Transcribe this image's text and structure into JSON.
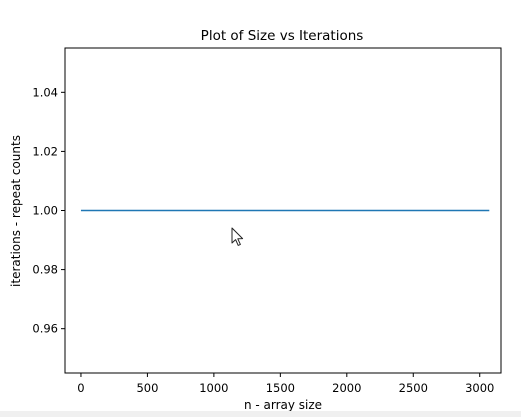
{
  "chart_data": {
    "type": "line",
    "title": "Plot of Size vs Iterations",
    "xlabel": "n - array size",
    "ylabel": "iterations - repeat counts",
    "xlim": [
      -120,
      3160
    ],
    "ylim": [
      0.945,
      1.055
    ],
    "xticks": [
      0,
      500,
      1000,
      1500,
      2000,
      2500,
      3000
    ],
    "yticks": [
      0.96,
      0.98,
      1.0,
      1.02,
      1.04
    ],
    "ytick_labels": [
      "0.96",
      "0.98",
      "1.00",
      "1.02",
      "1.04"
    ],
    "series": [
      {
        "color": "#1f77b4",
        "x": [
          0,
          3072
        ],
        "y": [
          1.0,
          1.0
        ]
      }
    ],
    "grid": false,
    "legend": "none"
  },
  "cursor": {
    "icon": "mouse-pointer-icon"
  }
}
